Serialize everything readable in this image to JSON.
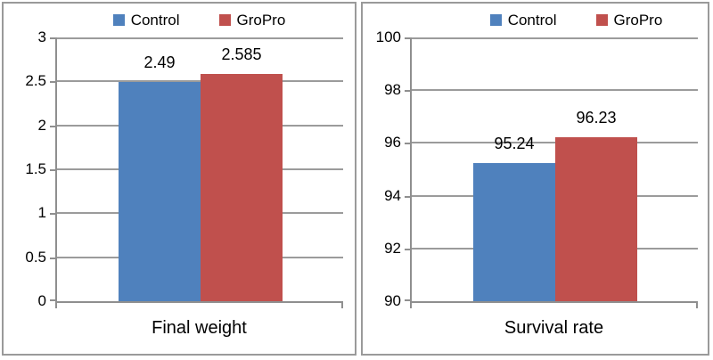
{
  "style": {
    "panel_border_color": "#9a9a9a",
    "axis_color": "#8f8f8f",
    "gridline_color": "#9b9b9b",
    "text_color": "#000000",
    "series_blue": "#4f81bd",
    "series_red": "#c0504d"
  },
  "chart_data": [
    {
      "type": "bar",
      "title": "",
      "categories": [
        "Final weight"
      ],
      "xlabel": "Final weight",
      "ylabel": "",
      "ylim": [
        0,
        3
      ],
      "ytick_step": 0.5,
      "yticks": [
        "3",
        "2.5",
        "2",
        "1.5",
        "1",
        "0.5",
        "0"
      ],
      "grid": true,
      "legend_position": "top",
      "data_labels": true,
      "series": [
        {
          "name": "Control",
          "color": "#4f81bd",
          "values": [
            2.49
          ],
          "labels": [
            "2.49"
          ]
        },
        {
          "name": "GroPro",
          "color": "#c0504d",
          "values": [
            2.585
          ],
          "labels": [
            "2.585"
          ]
        }
      ]
    },
    {
      "type": "bar",
      "title": "",
      "categories": [
        "Survival rate"
      ],
      "xlabel": "Survival rate",
      "ylabel": "",
      "ylim": [
        90,
        100
      ],
      "ytick_step": 2,
      "yticks": [
        "100",
        "98",
        "96",
        "94",
        "92",
        "90"
      ],
      "grid": true,
      "legend_position": "top",
      "data_labels": true,
      "series": [
        {
          "name": "Control",
          "color": "#4f81bd",
          "values": [
            95.24
          ],
          "labels": [
            "95.24"
          ]
        },
        {
          "name": "GroPro",
          "color": "#c0504d",
          "values": [
            96.23
          ],
          "labels": [
            "96.23"
          ]
        }
      ]
    }
  ]
}
